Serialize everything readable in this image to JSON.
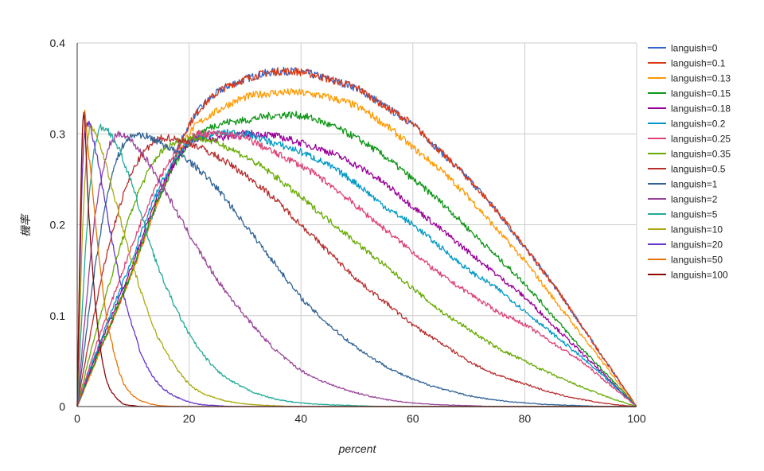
{
  "chart_data": {
    "type": "line",
    "title": "",
    "xlabel": "percent",
    "ylabel": "機率",
    "xlim": [
      0,
      100
    ],
    "ylim": [
      0,
      0.4
    ],
    "grid": true,
    "legend_position": "right",
    "x_ticks": [
      "0",
      "20",
      "40",
      "60",
      "80",
      "100"
    ],
    "y_ticks": [
      "0",
      "0.1",
      "0.2",
      "0.3",
      "0.4"
    ],
    "x": [
      0,
      1,
      2,
      3,
      4,
      5,
      6,
      8,
      10,
      12,
      15,
      20,
      25,
      30,
      35,
      40,
      45,
      50,
      55,
      60,
      65,
      70,
      75,
      80,
      85,
      90,
      95,
      100
    ],
    "series": [
      {
        "name": "languish=0",
        "color": "#3366cc",
        "values": [
          0,
          0.015,
          0.03,
          0.045,
          0.06,
          0.075,
          0.09,
          0.12,
          0.15,
          0.185,
          0.235,
          0.31,
          0.345,
          0.36,
          0.368,
          0.368,
          0.36,
          0.35,
          0.33,
          0.31,
          0.28,
          0.25,
          0.215,
          0.175,
          0.135,
          0.09,
          0.045,
          0
        ]
      },
      {
        "name": "languish=0.1",
        "color": "#dc3912",
        "values": [
          0,
          0.015,
          0.03,
          0.045,
          0.06,
          0.075,
          0.09,
          0.12,
          0.15,
          0.185,
          0.235,
          0.31,
          0.345,
          0.36,
          0.368,
          0.368,
          0.36,
          0.35,
          0.33,
          0.31,
          0.28,
          0.25,
          0.215,
          0.175,
          0.135,
          0.09,
          0.045,
          0
        ]
      },
      {
        "name": "languish=0.13",
        "color": "#ff9900",
        "values": [
          0,
          0.015,
          0.03,
          0.045,
          0.06,
          0.075,
          0.09,
          0.12,
          0.15,
          0.185,
          0.235,
          0.3,
          0.325,
          0.34,
          0.345,
          0.345,
          0.34,
          0.33,
          0.31,
          0.285,
          0.26,
          0.23,
          0.195,
          0.16,
          0.12,
          0.08,
          0.04,
          0
        ]
      },
      {
        "name": "languish=0.15",
        "color": "#109618",
        "values": [
          0,
          0.016,
          0.032,
          0.047,
          0.062,
          0.077,
          0.092,
          0.122,
          0.152,
          0.187,
          0.235,
          0.29,
          0.31,
          0.315,
          0.32,
          0.32,
          0.31,
          0.295,
          0.275,
          0.25,
          0.225,
          0.195,
          0.165,
          0.135,
          0.1,
          0.065,
          0.033,
          0
        ]
      },
      {
        "name": "languish=0.18",
        "color": "#990099",
        "values": [
          0,
          0.017,
          0.034,
          0.05,
          0.066,
          0.082,
          0.097,
          0.128,
          0.158,
          0.193,
          0.24,
          0.29,
          0.295,
          0.3,
          0.298,
          0.29,
          0.28,
          0.265,
          0.245,
          0.22,
          0.195,
          0.17,
          0.145,
          0.12,
          0.09,
          0.06,
          0.03,
          0
        ]
      },
      {
        "name": "languish=0.2",
        "color": "#0099c6",
        "values": [
          0,
          0.018,
          0.036,
          0.053,
          0.07,
          0.086,
          0.102,
          0.134,
          0.165,
          0.2,
          0.245,
          0.29,
          0.3,
          0.3,
          0.29,
          0.28,
          0.265,
          0.245,
          0.22,
          0.2,
          0.175,
          0.15,
          0.13,
          0.105,
          0.08,
          0.055,
          0.028,
          0
        ]
      },
      {
        "name": "languish=0.25",
        "color": "#dd4477",
        "values": [
          0,
          0.02,
          0.04,
          0.06,
          0.078,
          0.096,
          0.113,
          0.147,
          0.18,
          0.212,
          0.255,
          0.295,
          0.3,
          0.295,
          0.28,
          0.265,
          0.245,
          0.22,
          0.195,
          0.17,
          0.145,
          0.125,
          0.105,
          0.09,
          0.07,
          0.05,
          0.025,
          0
        ]
      },
      {
        "name": "languish=0.35",
        "color": "#66aa00",
        "values": [
          0,
          0.025,
          0.05,
          0.074,
          0.097,
          0.12,
          0.14,
          0.182,
          0.22,
          0.25,
          0.28,
          0.295,
          0.29,
          0.275,
          0.255,
          0.23,
          0.205,
          0.18,
          0.155,
          0.13,
          0.105,
          0.085,
          0.065,
          0.05,
          0.035,
          0.022,
          0.01,
          0
        ]
      },
      {
        "name": "languish=0.5",
        "color": "#b82e2e",
        "values": [
          0,
          0.035,
          0.068,
          0.1,
          0.13,
          0.16,
          0.185,
          0.228,
          0.26,
          0.28,
          0.295,
          0.29,
          0.275,
          0.255,
          0.23,
          0.2,
          0.17,
          0.14,
          0.115,
          0.09,
          0.07,
          0.05,
          0.035,
          0.025,
          0.015,
          0.008,
          0.003,
          0
        ]
      },
      {
        "name": "languish=1",
        "color": "#316395",
        "values": [
          0,
          0.05,
          0.1,
          0.145,
          0.185,
          0.22,
          0.25,
          0.285,
          0.298,
          0.298,
          0.29,
          0.27,
          0.24,
          0.2,
          0.16,
          0.12,
          0.09,
          0.065,
          0.045,
          0.03,
          0.02,
          0.012,
          0.007,
          0.004,
          0.002,
          0.001,
          0,
          0
        ]
      },
      {
        "name": "languish=2",
        "color": "#994499",
        "values": [
          0,
          0.07,
          0.14,
          0.2,
          0.24,
          0.27,
          0.29,
          0.3,
          0.29,
          0.275,
          0.245,
          0.19,
          0.14,
          0.1,
          0.065,
          0.04,
          0.025,
          0.015,
          0.008,
          0.004,
          0.002,
          0.001,
          0,
          0,
          0,
          0,
          0,
          0
        ]
      },
      {
        "name": "languish=5",
        "color": "#22aa99",
        "values": [
          0,
          0.12,
          0.22,
          0.28,
          0.305,
          0.305,
          0.3,
          0.275,
          0.24,
          0.2,
          0.145,
          0.08,
          0.04,
          0.02,
          0.009,
          0.004,
          0.002,
          0.001,
          0,
          0,
          0,
          0,
          0,
          0,
          0,
          0,
          0,
          0
        ]
      },
      {
        "name": "languish=10",
        "color": "#aaaa11",
        "values": [
          0,
          0.2,
          0.3,
          0.305,
          0.29,
          0.27,
          0.245,
          0.2,
          0.155,
          0.115,
          0.07,
          0.025,
          0.009,
          0.003,
          0.001,
          0,
          0,
          0,
          0,
          0,
          0,
          0,
          0,
          0,
          0,
          0,
          0,
          0
        ]
      },
      {
        "name": "languish=20",
        "color": "#6633cc",
        "values": [
          0,
          0.27,
          0.31,
          0.29,
          0.26,
          0.225,
          0.19,
          0.13,
          0.085,
          0.05,
          0.022,
          0.005,
          0.001,
          0,
          0,
          0,
          0,
          0,
          0,
          0,
          0,
          0,
          0,
          0,
          0,
          0,
          0,
          0
        ]
      },
      {
        "name": "languish=50",
        "color": "#e67300",
        "values": [
          0,
          0.31,
          0.28,
          0.22,
          0.16,
          0.11,
          0.075,
          0.03,
          0.012,
          0.005,
          0.001,
          0,
          0,
          0,
          0,
          0,
          0,
          0,
          0,
          0,
          0,
          0,
          0,
          0,
          0,
          0,
          0,
          0
        ]
      },
      {
        "name": "languish=100",
        "color": "#8b0707",
        "values": [
          0,
          0.315,
          0.22,
          0.13,
          0.07,
          0.035,
          0.018,
          0.004,
          0.001,
          0,
          0,
          0,
          0,
          0,
          0,
          0,
          0,
          0,
          0,
          0,
          0,
          0,
          0,
          0,
          0,
          0,
          0,
          0
        ]
      }
    ]
  }
}
